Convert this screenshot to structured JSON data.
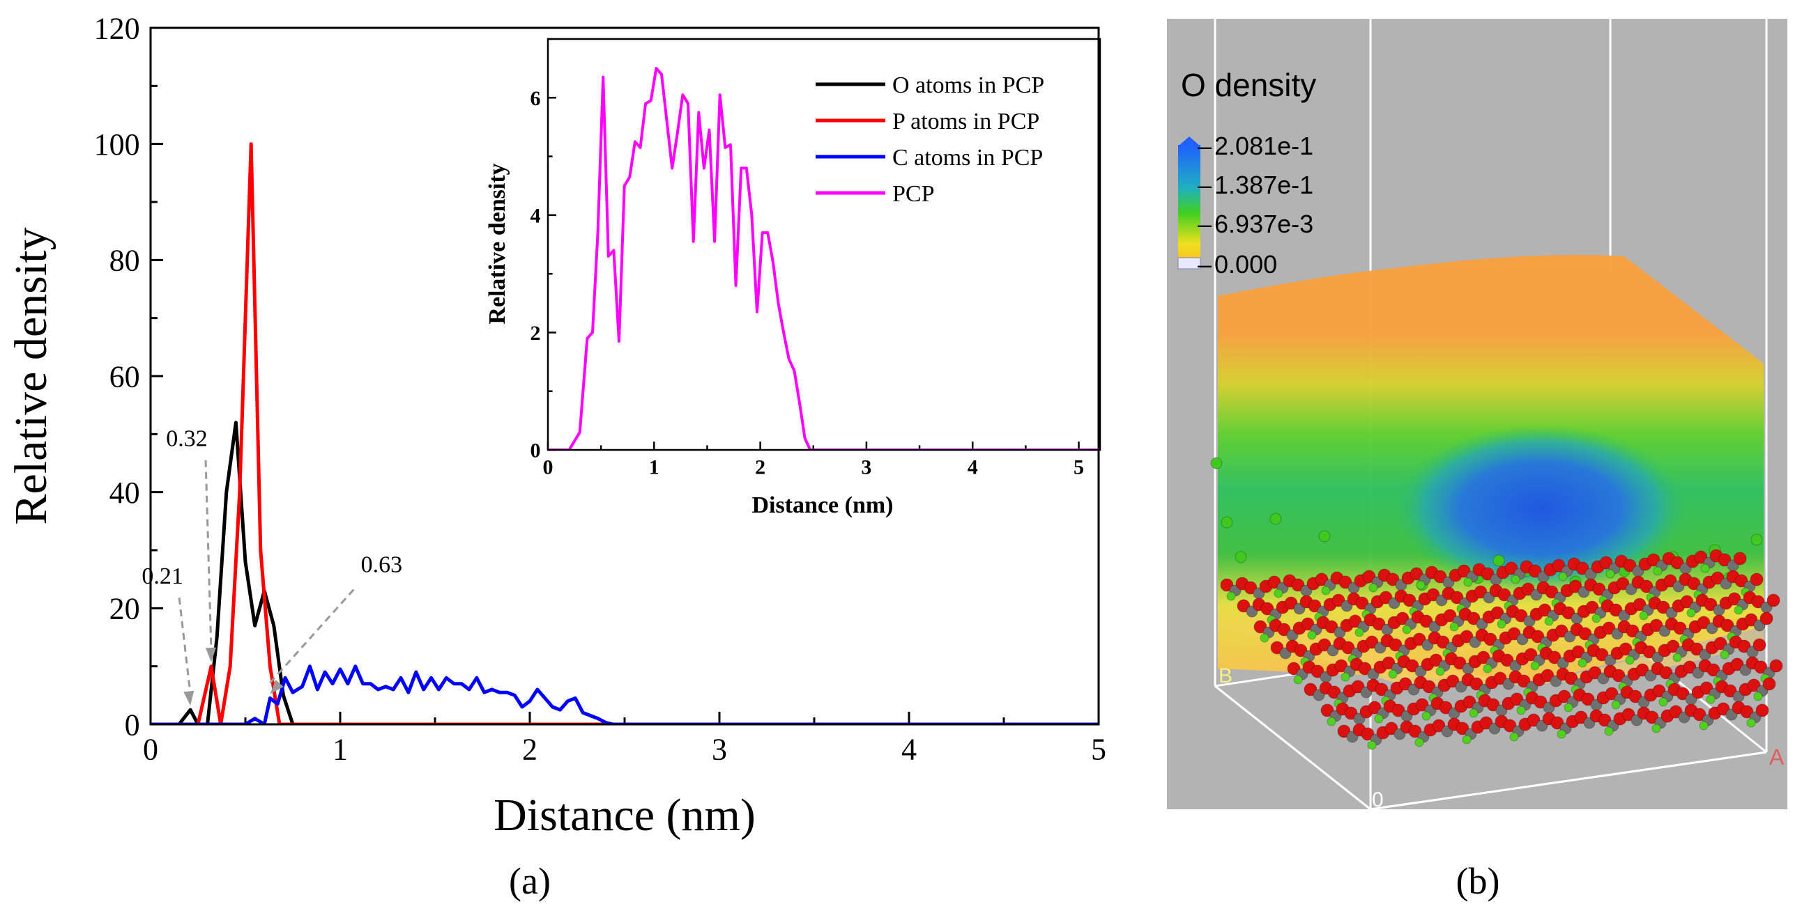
{
  "colors": {
    "o_atoms": "#000000",
    "p_atoms": "#ff0000",
    "c_atoms": "#0000ff",
    "pcp": "#ff00ff",
    "annotation": "#999999",
    "panel_b_bg": "#b3b3b3"
  },
  "chart_data": [
    {
      "type": "line",
      "id": "main",
      "panel_label": "(a)",
      "xlabel": "Distance (nm)",
      "ylabel": "Relative density",
      "xlim": [
        0,
        5
      ],
      "ylim": [
        0,
        120
      ],
      "xticks": [
        0,
        1,
        2,
        3,
        4,
        5
      ],
      "yticks": [
        0,
        20,
        40,
        60,
        80,
        100,
        120
      ],
      "series": [
        {
          "name": "O atoms in PCP",
          "color": "#000000",
          "x": [
            0,
            0.15,
            0.21,
            0.25,
            0.3,
            0.35,
            0.4,
            0.45,
            0.5,
            0.55,
            0.6,
            0.65,
            0.7,
            0.75,
            0.8,
            5
          ],
          "y": [
            0,
            0,
            2.5,
            0,
            0,
            15,
            40,
            52,
            28,
            17,
            23,
            17,
            5,
            0,
            0,
            0
          ]
        },
        {
          "name": "P atoms in PCP",
          "color": "#ff0000",
          "x": [
            0,
            0.25,
            0.32,
            0.37,
            0.42,
            0.47,
            0.53,
            0.58,
            0.63,
            0.68,
            5
          ],
          "y": [
            0,
            0,
            10,
            0,
            10,
            40,
            100,
            30,
            10,
            0,
            0
          ]
        },
        {
          "name": "C atoms in PCP",
          "color": "#0000ff",
          "x": [
            0,
            0.5,
            0.55,
            0.6,
            0.63,
            0.67,
            0.71,
            0.75,
            0.8,
            0.84,
            0.88,
            0.92,
            0.96,
            1.0,
            1.04,
            1.08,
            1.12,
            1.16,
            1.2,
            1.24,
            1.28,
            1.32,
            1.36,
            1.4,
            1.44,
            1.48,
            1.52,
            1.56,
            1.6,
            1.64,
            1.68,
            1.72,
            1.76,
            1.8,
            1.84,
            1.88,
            1.92,
            1.96,
            2.0,
            2.04,
            2.08,
            2.12,
            2.16,
            2.2,
            2.24,
            2.28,
            2.32,
            2.36,
            2.4,
            2.44,
            2.48,
            2.52,
            5
          ],
          "y": [
            0,
            0,
            1,
            0,
            4.5,
            3.5,
            8,
            5.5,
            6.5,
            10,
            6,
            9,
            7,
            9.5,
            7,
            10,
            7,
            7,
            6,
            6.5,
            6,
            8,
            5.5,
            9,
            6,
            8,
            6,
            8,
            7,
            7,
            6,
            8,
            5.5,
            6,
            5.5,
            5.5,
            5,
            3,
            4,
            6,
            4.5,
            3,
            2.5,
            4,
            4.5,
            2,
            1.5,
            1,
            0.3,
            0,
            0,
            0,
            0
          ]
        },
        {
          "name": "PCP",
          "color": "#ff00ff",
          "x": [],
          "y": []
        }
      ],
      "annotations": [
        {
          "label": "0.21",
          "x": 0.21,
          "y": 2.5
        },
        {
          "label": "0.32",
          "x": 0.32,
          "y": 10
        },
        {
          "label": "0.63",
          "x": 0.63,
          "y": 4.5
        }
      ]
    },
    {
      "type": "line",
      "id": "inset",
      "xlabel": "Distance (nm)",
      "ylabel": "Relative density",
      "xlim": [
        0,
        5.2
      ],
      "ylim": [
        0,
        7
      ],
      "xticks": [
        0,
        1,
        2,
        3,
        4,
        5
      ],
      "yticks": [
        0,
        2,
        4,
        6
      ],
      "series": [
        {
          "name": "PCP",
          "color": "#ff00ff",
          "x": [
            0,
            0.2,
            0.3,
            0.37,
            0.42,
            0.47,
            0.52,
            0.57,
            0.62,
            0.67,
            0.72,
            0.77,
            0.82,
            0.87,
            0.92,
            0.97,
            1.02,
            1.07,
            1.12,
            1.17,
            1.22,
            1.27,
            1.32,
            1.37,
            1.42,
            1.47,
            1.52,
            1.57,
            1.62,
            1.67,
            1.72,
            1.77,
            1.82,
            1.87,
            1.92,
            1.97,
            2.02,
            2.07,
            2.12,
            2.17,
            2.22,
            2.27,
            2.32,
            2.37,
            2.42,
            2.47,
            2.52,
            2.57,
            5.2
          ],
          "y": [
            0,
            0,
            0.3,
            1.9,
            2,
            3.7,
            6.35,
            3.3,
            3.4,
            1.85,
            4.5,
            4.65,
            5.25,
            5.15,
            5.9,
            5.95,
            6.5,
            6.4,
            5.6,
            4.8,
            5.4,
            6.05,
            5.9,
            3.55,
            5.75,
            4.8,
            5.45,
            3.55,
            6.05,
            5.15,
            5.2,
            2.8,
            4.8,
            4.8,
            4,
            2.35,
            3.7,
            3.7,
            3.2,
            2.5,
            2,
            1.55,
            1.35,
            0.8,
            0.2,
            0,
            0,
            0,
            0
          ]
        }
      ]
    }
  ],
  "panel_b": {
    "title": "O density",
    "legend_values": [
      "2.081e-1",
      "1.387e-1",
      "6.937e-3",
      "0.000"
    ],
    "axis_labels": [
      "B",
      "0",
      "A"
    ],
    "panel_label": "(b)"
  }
}
